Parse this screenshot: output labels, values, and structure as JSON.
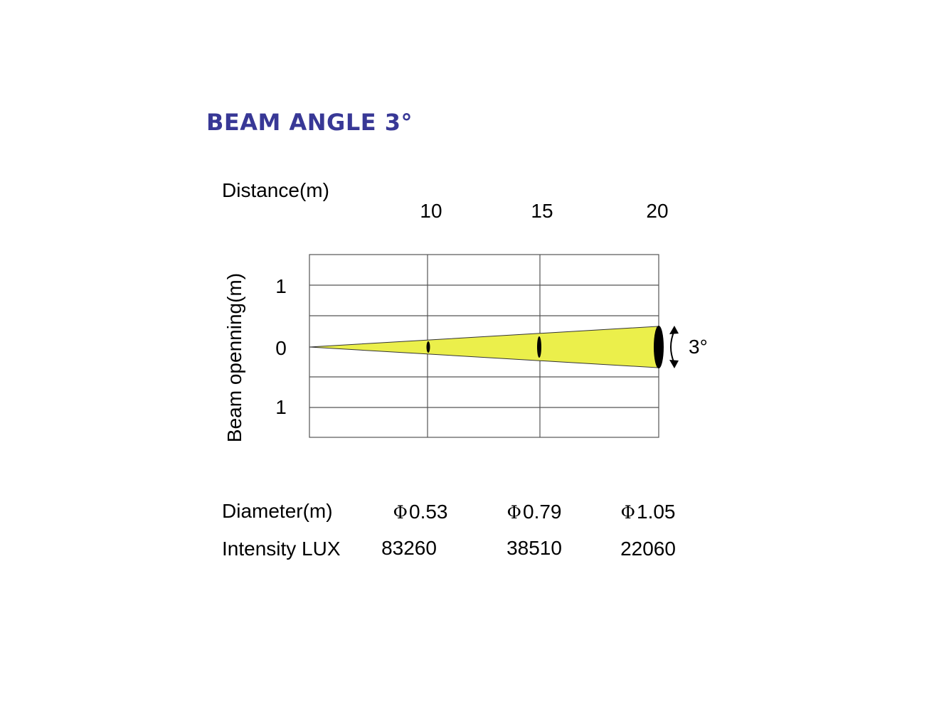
{
  "title": "BEAM ANGLE 3°",
  "distance_label": "Distance(m)",
  "distances": [
    "10",
    "15",
    "20"
  ],
  "beam_label": "Beam openning(m)",
  "beam_ticks": [
    "1",
    "0",
    "1"
  ],
  "angle_label": "3°",
  "diameter_label": "Diameter(m)",
  "diameter_symbol": "Φ",
  "diameters": [
    "0.53",
    "0.79",
    "1.05"
  ],
  "intensity_label": "Intensity LUX",
  "intensities": [
    "83260",
    "38510",
    "22060"
  ],
  "colors": {
    "title": "#383896",
    "beam_fill": "#ebef4b",
    "grid": "#555555"
  }
}
